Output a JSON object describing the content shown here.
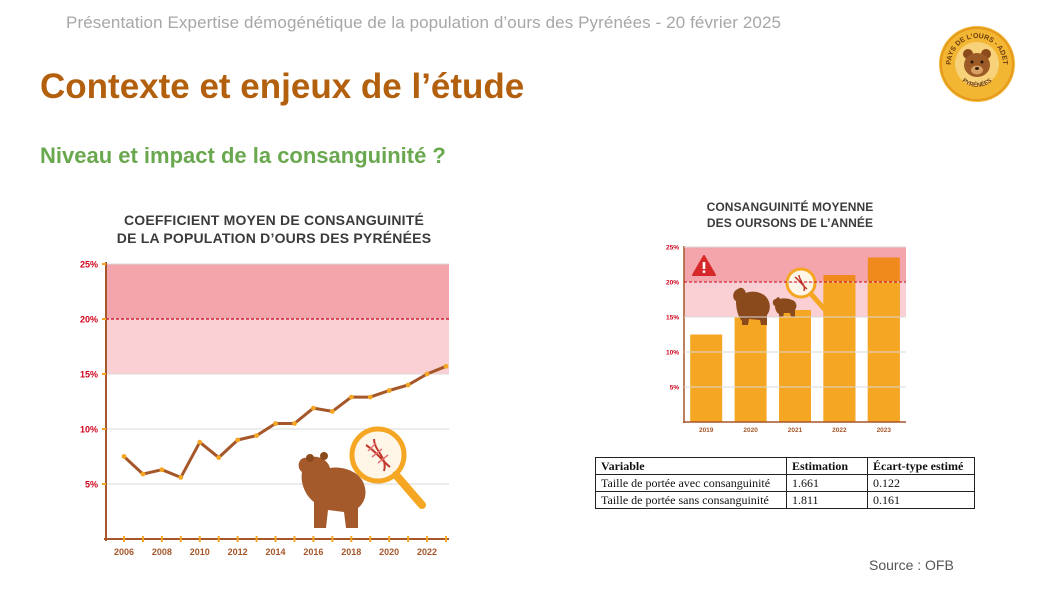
{
  "header": {
    "text": "Présentation Expertise démogénétique de la population d’ours des Pyrénées - 20 février 2025"
  },
  "logo": {
    "top_text": "PAYS DE L’OURS - ADET",
    "bottom_text": "PYRÉNÉES"
  },
  "page": {
    "title": "Contexte et enjeux de l’étude",
    "subtitle": "Niveau et impact de la consanguinité ?"
  },
  "colors": {
    "title": "#b3600e",
    "subtitle": "#6aa84f",
    "line": "#a5572a",
    "marker": "#f5a623",
    "bar": "#f5a623",
    "band_high": "#f4a4ab",
    "band_low": "#fbd0d4"
  },
  "chart_data": [
    {
      "type": "line",
      "title_line1": "COEFFICIENT MOYEN DE CONSANGUINITÉ",
      "title_line2": "DE LA POPULATION D’OURS DES PYRÉNÉES",
      "x": [
        2006,
        2007,
        2008,
        2009,
        2010,
        2011,
        2012,
        2013,
        2014,
        2015,
        2016,
        2017,
        2018,
        2019,
        2020,
        2021,
        2022,
        2023
      ],
      "series": [
        {
          "values": [
            7.5,
            5.9,
            6.3,
            5.6,
            8.8,
            7.4,
            9.0,
            9.4,
            10.5,
            10.5,
            11.9,
            11.6,
            12.9,
            12.9,
            13.5,
            14.0,
            15.0,
            15.7
          ]
        }
      ],
      "x_tick_labels": [
        "2006",
        "2008",
        "2010",
        "2012",
        "2014",
        "2016",
        "2018",
        "2020",
        "2022"
      ],
      "y_tick_labels": [
        "25%",
        "20%",
        "15%",
        "10%",
        "5%"
      ],
      "ylim": [
        0,
        25
      ],
      "bands": [
        {
          "from": 20,
          "to": 25
        },
        {
          "from": 15,
          "to": 20
        }
      ],
      "threshold_line": 20
    },
    {
      "type": "bar",
      "title_line1": "CONSANGUINITÉ MOYENNE",
      "title_line2": "DES OURSONS DE L’ANNÉE",
      "categories": [
        "2019",
        "2020",
        "2021",
        "2022",
        "2023"
      ],
      "values": [
        12.5,
        15.0,
        16.0,
        21.0,
        23.5
      ],
      "y_tick_labels": [
        "25%",
        "20%",
        "15%",
        "10%",
        "5%"
      ],
      "ylim": [
        0,
        25
      ],
      "bands": [
        {
          "from": 20,
          "to": 25
        },
        {
          "from": 15,
          "to": 20
        }
      ],
      "threshold_line": 20,
      "warning_icon": "warning-triangle-icon"
    }
  ],
  "table": {
    "headers": [
      "Variable",
      "Estimation",
      "Écart-type estimé"
    ],
    "rows": [
      [
        "Taille de portée avec consanguinité",
        "1.661",
        "0.122"
      ],
      [
        "Taille de portée sans consanguinité",
        "1.811",
        "0.161"
      ]
    ]
  },
  "source": "Source : OFB"
}
